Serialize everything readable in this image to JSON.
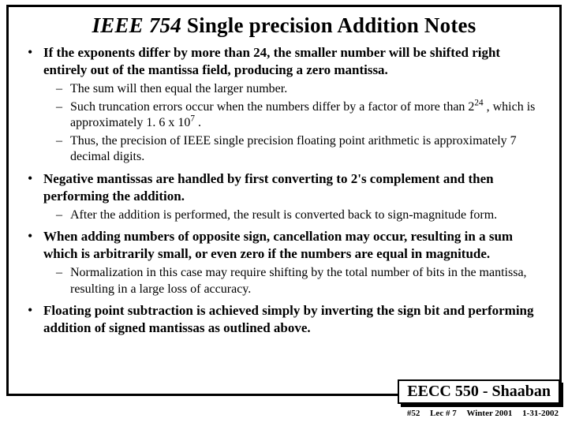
{
  "title_italic": "IEEE 754",
  "title_rest": " Single precision Addition Notes",
  "bullets": [
    {
      "main": "If the exponents differ by more than 24, the smaller number will be shifted right entirely out of the mantissa field, producing a zero mantissa.",
      "subs": [
        "The sum will then equal the larger number.",
        "Such truncation errors occur when the numbers differ by a factor of more than 2^24 , which is approximately 1. 6 x 10^7 .",
        "Thus, the precision of IEEE single precision floating point arithmetic is approximately 7 decimal digits."
      ]
    },
    {
      "main": "Negative mantissas are handled by first converting to 2's complement and then performing the addition.",
      "subs": [
        "After the addition is performed, the result is converted back to sign-magnitude form."
      ]
    },
    {
      "main": "When adding numbers of opposite sign, cancellation may occur, resulting in a sum which is arbitrarily small, or even zero if the numbers are equal in magnitude.",
      "subs": [
        "Normalization in this case may require shifting by the total number of bits in the mantissa, resulting in a large loss of accuracy."
      ]
    },
    {
      "main": "Floating point subtraction is achieved simply by inverting the sign bit and performing addition of signed mantissas as outlined above.",
      "subs": []
    }
  ],
  "footer_course": "EECC 550 - Shaaban",
  "footer_slide": "#52",
  "footer_lec": "Lec # 7",
  "footer_term": "Winter 2001",
  "footer_date": "1-31-2002"
}
